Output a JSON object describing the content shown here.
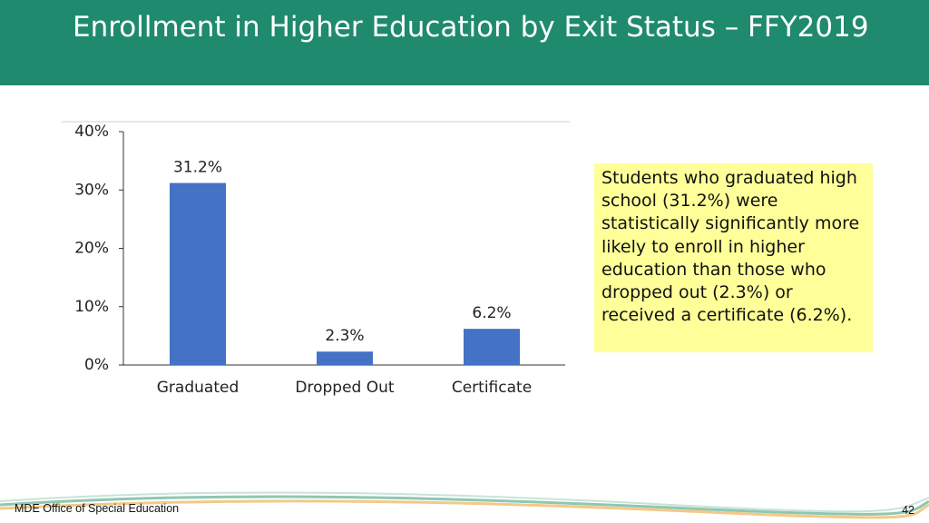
{
  "header": {
    "title": "Enrollment in Higher Education by Exit Status – FFY2019"
  },
  "chart_data": {
    "type": "bar",
    "categories": [
      "Graduated",
      "Dropped Out",
      "Certificate"
    ],
    "values": [
      31.2,
      2.3,
      6.2
    ],
    "value_labels": [
      "31.2%",
      "2.3%",
      "6.2%"
    ],
    "color": "#4472c4",
    "ylim": [
      0,
      40
    ],
    "yticks": [
      {
        "value": 0,
        "label": "0%"
      },
      {
        "value": 10,
        "label": "10%"
      },
      {
        "value": 20,
        "label": "20%"
      },
      {
        "value": 30,
        "label": "30%"
      },
      {
        "value": 40,
        "label": "40%"
      }
    ],
    "grid": false
  },
  "callout": {
    "text": "Students who graduated high school (31.2%) were statistically significantly more likely to enroll in higher education than those who dropped out (2.3%) or received a certificate (6.2%)."
  },
  "footer": {
    "left": "MDE Office of Special Education",
    "page": "42"
  }
}
